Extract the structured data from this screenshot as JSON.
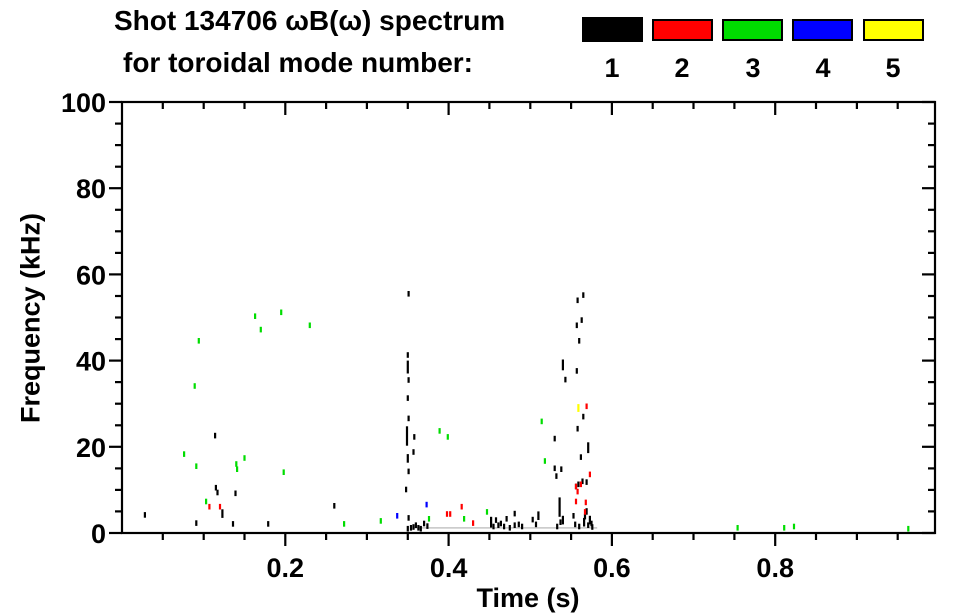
{
  "title": {
    "line1": "Shot 134706 ωB(ω) spectrum",
    "line2": "for toroidal mode number:"
  },
  "legend": {
    "modes": [
      {
        "label": "1",
        "color": "#000000"
      },
      {
        "label": "2",
        "color": "#ff0000"
      },
      {
        "label": "3",
        "color": "#00dd00"
      },
      {
        "label": "4",
        "color": "#0000ff"
      },
      {
        "label": "5",
        "color": "#ffff00"
      }
    ]
  },
  "axes": {
    "x": {
      "label": "Time (s)",
      "range": [
        0,
        0.9955
      ],
      "major_ticks": [
        0.2,
        0.4,
        0.6,
        0.8
      ],
      "tick_labels": [
        "0.2",
        "0.4",
        "0.6",
        "0.8"
      ],
      "minor_step": 0.05
    },
    "y": {
      "label": "Frequency (kHz)",
      "range": [
        0,
        100
      ],
      "major_ticks": [
        0,
        20,
        40,
        60,
        80,
        100
      ],
      "tick_labels": [
        "0",
        "20",
        "40",
        "60",
        "80",
        "100"
      ],
      "minor_step": 5
    }
  },
  "chart_data": {
    "type": "scatter",
    "title": "Shot 134706 ωB(ω) spectrum for toroidal mode number: 1 2 3 4 5",
    "xlabel": "Time (s)",
    "ylabel": "Frequency (kHz)",
    "xlim": [
      0,
      1.0
    ],
    "ylim": [
      0,
      100
    ],
    "grid": false,
    "legend_position": "top-right",
    "point_format": "[time_s, freq_kHz, optional_vertical_extent_kHz]",
    "series": [
      {
        "name": "n=1",
        "color": "#000000",
        "points": [
          [
            0.028,
            4.2
          ],
          [
            0.091,
            2.3
          ],
          [
            0.114,
            22.6
          ],
          [
            0.115,
            10.5
          ],
          [
            0.117,
            9.4
          ],
          [
            0.123,
            4.5,
            2
          ],
          [
            0.136,
            2.1
          ],
          [
            0.139,
            9.2
          ],
          [
            0.179,
            2.1
          ],
          [
            0.26,
            6.3
          ],
          [
            0.351,
            55.5
          ],
          [
            0.35,
            41.3
          ],
          [
            0.35,
            38.5,
            3
          ],
          [
            0.351,
            35.5
          ],
          [
            0.35,
            31.3
          ],
          [
            0.351,
            26.6
          ],
          [
            0.349,
            22.5,
            4.5
          ],
          [
            0.358,
            22.3
          ],
          [
            0.357,
            18.8
          ],
          [
            0.35,
            17.3,
            2
          ],
          [
            0.351,
            14.3
          ],
          [
            0.348,
            10.1
          ],
          [
            0.351,
            3.5
          ],
          [
            0.35,
            1.0
          ],
          [
            0.354,
            1.2
          ],
          [
            0.357,
            1.4
          ],
          [
            0.36,
            1.8
          ],
          [
            0.363,
            1.2
          ],
          [
            0.366,
            1.0
          ],
          [
            0.37,
            2.2
          ],
          [
            0.374,
            1.6
          ],
          [
            0.452,
            2.5,
            2.5
          ],
          [
            0.455,
            1.5
          ],
          [
            0.458,
            3.0
          ],
          [
            0.461,
            1.8
          ],
          [
            0.464,
            2.2
          ],
          [
            0.468,
            1.5
          ],
          [
            0.471,
            3.3
          ],
          [
            0.475,
            1.2
          ],
          [
            0.481,
            4.5
          ],
          [
            0.481,
            1.8
          ],
          [
            0.486,
            2.0
          ],
          [
            0.49,
            1.5
          ],
          [
            0.503,
            3.1
          ],
          [
            0.507,
            2.0
          ],
          [
            0.51,
            4.0,
            2
          ],
          [
            0.53,
            21.9
          ],
          [
            0.53,
            15.0
          ],
          [
            0.532,
            13.2
          ],
          [
            0.533,
            1.5
          ],
          [
            0.536,
            6.0,
            4.5
          ],
          [
            0.537,
            2.5
          ],
          [
            0.538,
            14.8
          ],
          [
            0.54,
            39.0,
            2.5
          ],
          [
            0.54,
            3.0,
            2
          ],
          [
            0.543,
            35.6
          ],
          [
            0.553,
            4.0
          ],
          [
            0.555,
            2.0
          ],
          [
            0.556,
            10.8
          ],
          [
            0.557,
            37.6
          ],
          [
            0.557,
            48.2
          ],
          [
            0.558,
            54.0
          ],
          [
            0.558,
            24.2
          ],
          [
            0.559,
            11.3
          ],
          [
            0.56,
            1.5
          ],
          [
            0.56,
            44.6
          ],
          [
            0.562,
            17.6
          ],
          [
            0.563,
            49.4
          ],
          [
            0.564,
            12.0
          ],
          [
            0.565,
            55.2
          ],
          [
            0.565,
            27.0
          ],
          [
            0.566,
            2.5,
            2
          ],
          [
            0.567,
            3.8
          ],
          [
            0.569,
            11.8
          ],
          [
            0.569,
            5.0,
            1.5
          ],
          [
            0.571,
            19.8,
            2.5
          ],
          [
            0.571,
            1.8
          ],
          [
            0.573,
            3.0,
            2
          ],
          [
            0.575,
            2.2
          ],
          [
            0.576,
            1.4
          ]
        ]
      },
      {
        "name": "n=2",
        "color": "#ff0000",
        "points": [
          [
            0.107,
            6.1
          ],
          [
            0.12,
            6.1
          ],
          [
            0.398,
            4.4
          ],
          [
            0.402,
            4.4
          ],
          [
            0.416,
            6.1
          ],
          [
            0.43,
            2.3
          ],
          [
            0.556,
            10.8
          ],
          [
            0.558,
            9.6
          ],
          [
            0.562,
            11.3
          ],
          [
            0.556,
            7.3
          ],
          [
            0.568,
            7.1
          ],
          [
            0.567,
            4.9
          ],
          [
            0.569,
            29.4
          ],
          [
            0.573,
            13.6
          ]
        ]
      },
      {
        "name": "n=3",
        "color": "#00dd00",
        "points": [
          [
            0.076,
            18.3
          ],
          [
            0.089,
            34.1
          ],
          [
            0.091,
            15.5
          ],
          [
            0.094,
            44.6
          ],
          [
            0.103,
            7.3
          ],
          [
            0.14,
            16.0
          ],
          [
            0.141,
            14.8
          ],
          [
            0.15,
            17.4
          ],
          [
            0.163,
            50.3
          ],
          [
            0.17,
            47.2
          ],
          [
            0.195,
            51.2
          ],
          [
            0.198,
            14.1
          ],
          [
            0.23,
            48.2
          ],
          [
            0.272,
            2.1
          ],
          [
            0.317,
            2.8
          ],
          [
            0.376,
            3.3
          ],
          [
            0.389,
            23.7
          ],
          [
            0.399,
            22.3
          ],
          [
            0.419,
            3.3
          ],
          [
            0.447,
            4.9
          ],
          [
            0.514,
            25.9
          ],
          [
            0.518,
            16.7
          ],
          [
            0.754,
            1.2
          ],
          [
            0.811,
            1.2
          ],
          [
            0.823,
            1.5
          ],
          [
            0.963,
            1.0
          ]
        ]
      },
      {
        "name": "n=4",
        "color": "#0000ff",
        "points": [
          [
            0.337,
            4.0
          ],
          [
            0.373,
            6.6
          ]
        ]
      },
      {
        "name": "n=5",
        "color": "#ffff00",
        "points": [
          [
            0.559,
            29.0,
            1.8
          ]
        ]
      }
    ],
    "baseline_band": {
      "t_start": 0.358,
      "t_end": 0.582,
      "freq": 1.2,
      "color": "#c8c8c8"
    }
  }
}
